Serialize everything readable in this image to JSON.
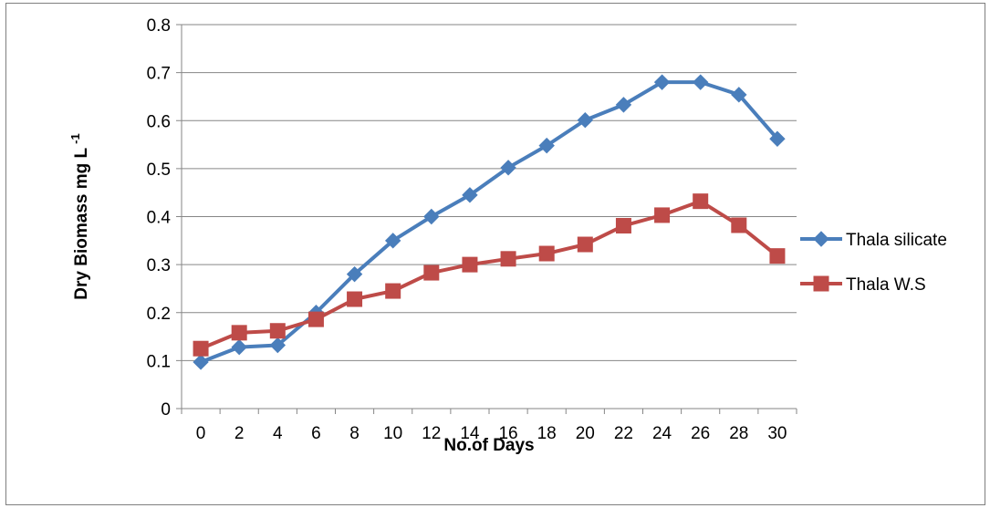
{
  "chart_data": {
    "type": "line",
    "title": "",
    "xlabel": "No.of Days",
    "ylabel": "Dry Biomass mg L",
    "ylabel_superscript": "-1",
    "x": [
      0,
      2,
      4,
      6,
      8,
      10,
      12,
      14,
      16,
      18,
      20,
      22,
      24,
      26,
      28,
      30
    ],
    "ylim": [
      0,
      0.8
    ],
    "yticks": [
      "0",
      "0.1",
      "0.2",
      "0.3",
      "0.4",
      "0.5",
      "0.6",
      "0.7",
      "0.8"
    ],
    "grid": true,
    "legend_position": "right",
    "series": [
      {
        "name": "Thala silicate",
        "color": "#4a7ebb",
        "marker": "diamond",
        "values": [
          0.097,
          0.128,
          0.132,
          0.2,
          0.28,
          0.35,
          0.4,
          0.445,
          0.502,
          0.548,
          0.601,
          0.633,
          0.68,
          0.68,
          0.654,
          0.562
        ]
      },
      {
        "name": "Thala W.S",
        "color": "#be4b48",
        "marker": "square",
        "values": [
          0.125,
          0.158,
          0.162,
          0.186,
          0.228,
          0.245,
          0.283,
          0.3,
          0.312,
          0.323,
          0.342,
          0.381,
          0.403,
          0.432,
          0.382,
          0.318
        ]
      }
    ]
  }
}
